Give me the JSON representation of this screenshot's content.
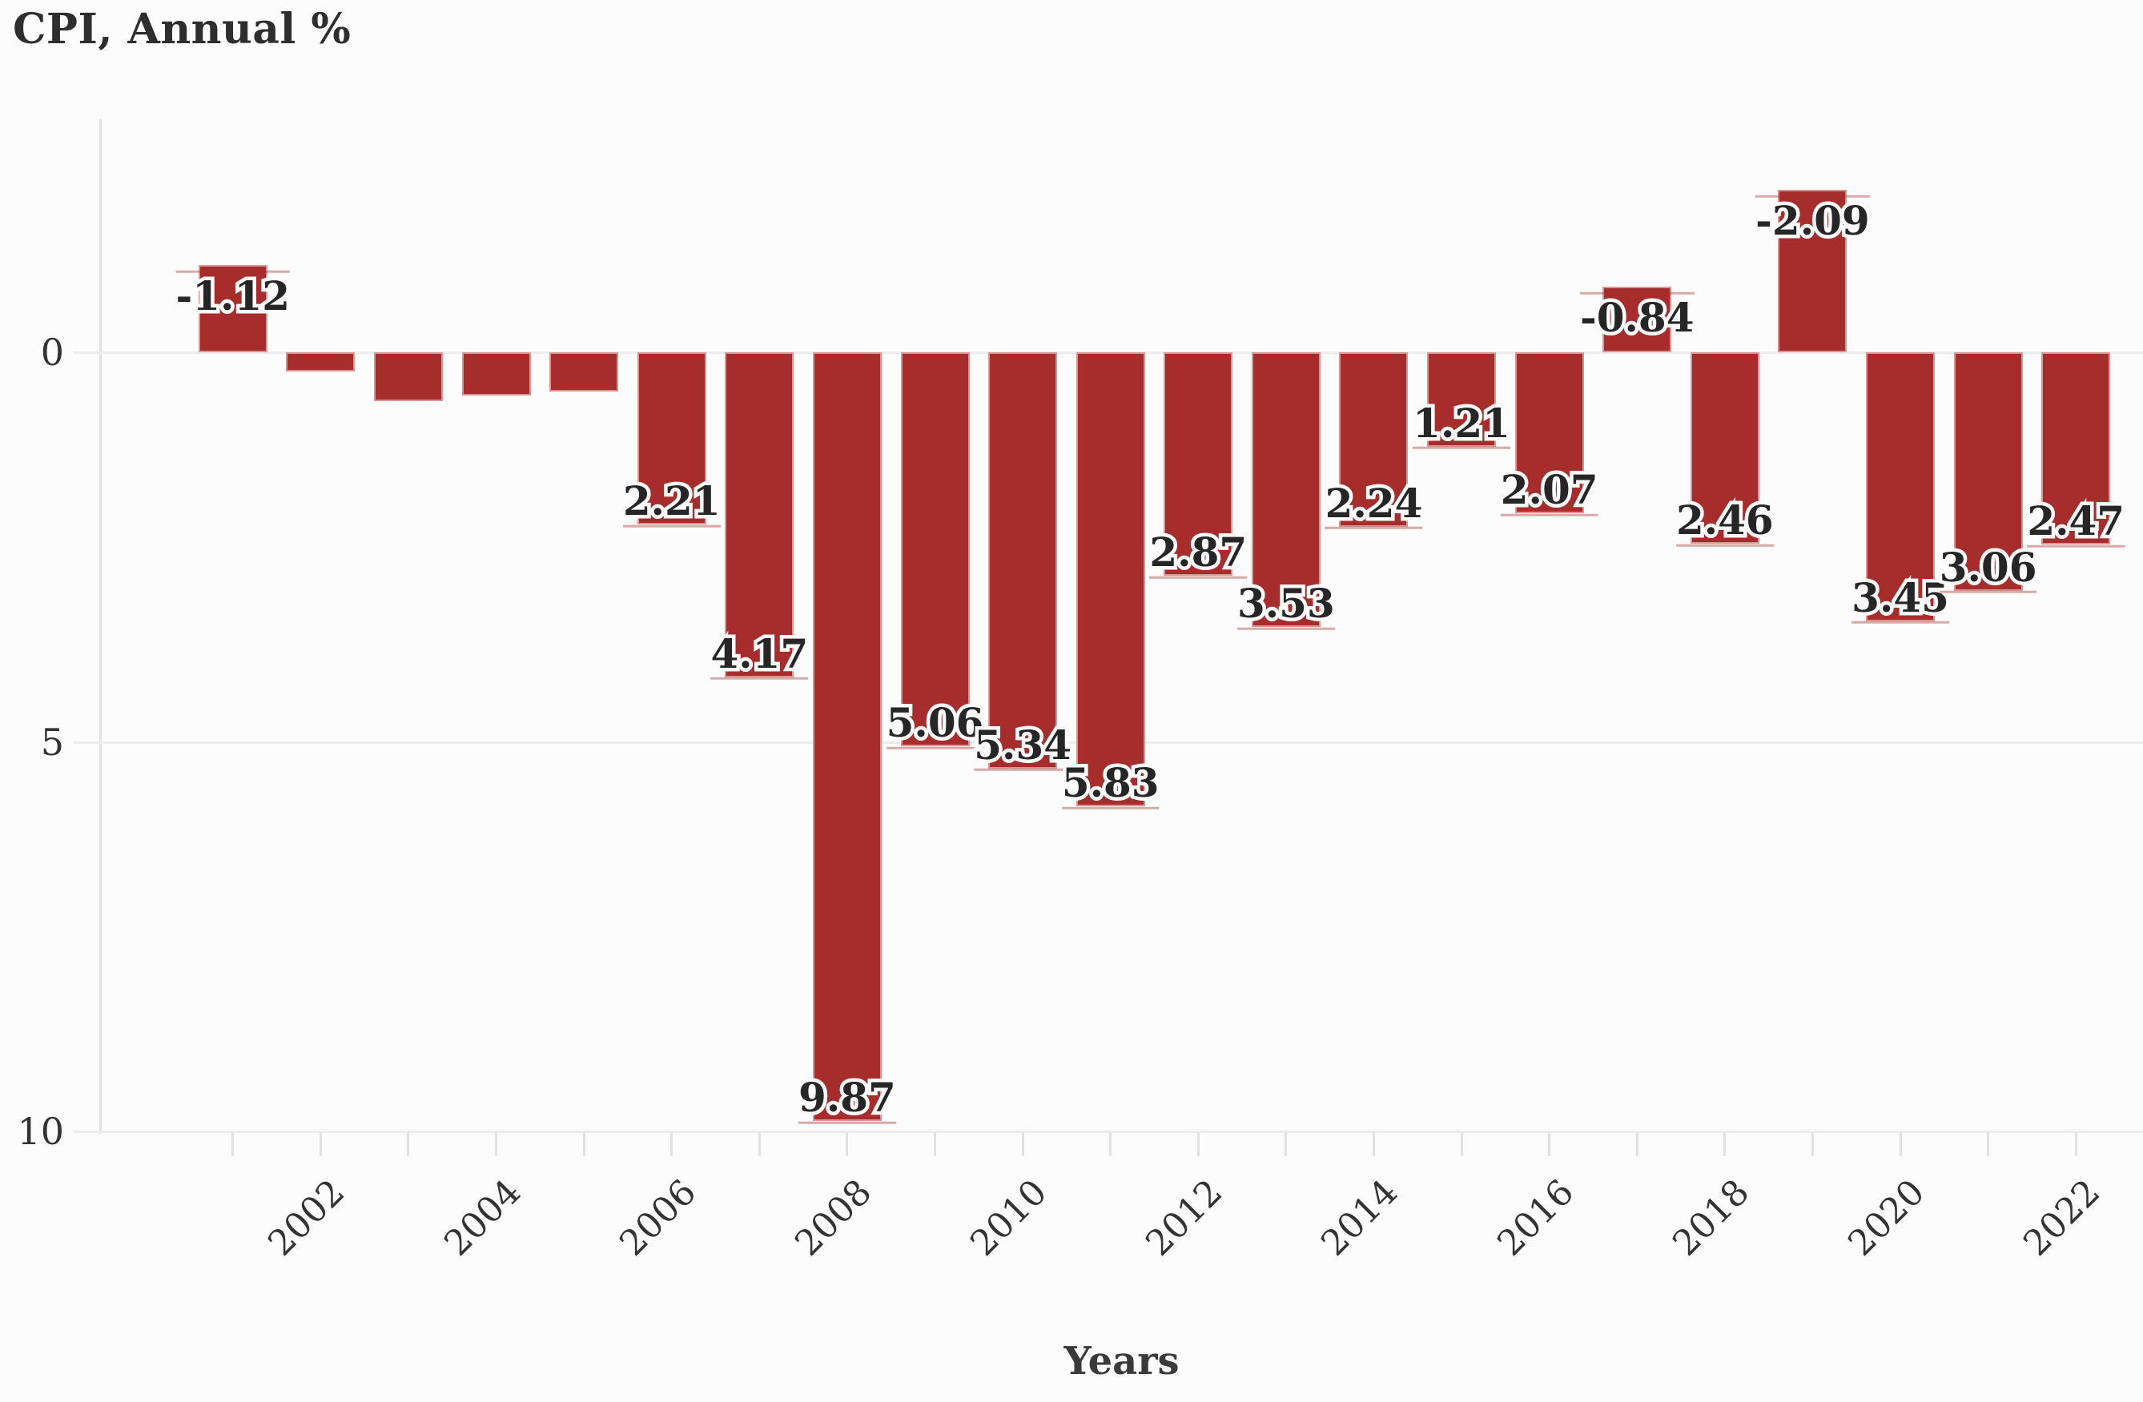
{
  "title": "CPI, Annual %",
  "x_axis_title": "Years",
  "chart_data": {
    "type": "bar",
    "title": "CPI, Annual %",
    "xlabel": "Years",
    "ylabel": "",
    "x": [
      2001,
      2002,
      2003,
      2004,
      2005,
      2006,
      2007,
      2008,
      2009,
      2010,
      2011,
      2012,
      2013,
      2014,
      2015,
      2016,
      2017,
      2018,
      2019,
      2020,
      2021,
      2022
    ],
    "values": [
      -1.12,
      0.25,
      0.63,
      0.55,
      0.5,
      2.21,
      4.17,
      9.87,
      5.06,
      5.34,
      5.83,
      2.87,
      3.53,
      2.24,
      1.21,
      2.07,
      -0.84,
      2.46,
      -2.09,
      3.45,
      3.06,
      2.47
    ],
    "bar_labels": [
      "-1.12",
      "",
      "",
      "",
      "",
      "2.21",
      "4.17",
      "9.87",
      "5.06",
      "5.34",
      "5.83",
      "2.87",
      "3.53",
      "2.24",
      "1.21",
      "2.07",
      "-0.84",
      "2.46",
      "-2.09",
      "3.45",
      "3.06",
      "2.47"
    ],
    "y_ticks": [
      0,
      5,
      10
    ],
    "x_tick_labels": [
      "2002",
      "2004",
      "2006",
      "2008",
      "2010",
      "2012",
      "2014",
      "2016",
      "2018",
      "2020",
      "2022"
    ],
    "y_axis_inverted": true,
    "ylim": [
      -3,
      10
    ],
    "grid": true,
    "legend": false,
    "bar_color": "#a62d2b",
    "background_color": "#fcfcfc",
    "gridline_color": "#ececec",
    "label_halo_color": "#fcfcfc"
  }
}
